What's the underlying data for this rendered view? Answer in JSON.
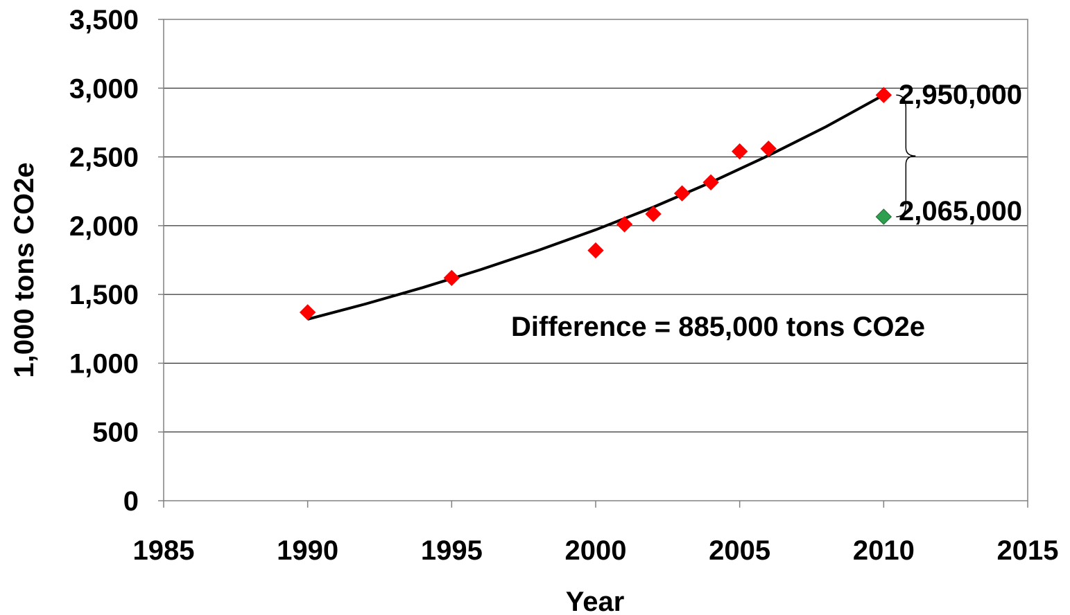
{
  "chart_data": {
    "type": "scatter",
    "xlabel": "Year",
    "ylabel": "1,000 tons CO2e",
    "xlim": [
      1985,
      2015
    ],
    "ylim": [
      0,
      3500
    ],
    "x_ticks": [
      1985,
      1990,
      1995,
      2000,
      2005,
      2010,
      2015
    ],
    "x_tick_labels": [
      "1985",
      "1990",
      "1995",
      "2000",
      "2005",
      "2010",
      "2015"
    ],
    "y_ticks": [
      0,
      500,
      1000,
      1500,
      2000,
      2500,
      3000,
      3500
    ],
    "y_tick_labels": [
      "0",
      "500",
      "1,000",
      "1,500",
      "2,000",
      "2,500",
      "3,000",
      "3,500"
    ],
    "grid": "horizontal",
    "series": [
      {
        "marker": "diamond",
        "color": "#ff0000",
        "x": [
          1990,
          1995,
          2000,
          2001,
          2002,
          2003,
          2004,
          2005,
          2006,
          2010
        ],
        "y": [
          1370,
          1620,
          1820,
          2010,
          2085,
          2235,
          2315,
          2540,
          2560,
          2950
        ]
      },
      {
        "marker": "diamond",
        "color": "#2e9e4f",
        "x": [
          2010
        ],
        "y": [
          2065
        ]
      }
    ],
    "trendline": {
      "kind": "exponential",
      "color": "#000000",
      "x": [
        1990,
        1992,
        1994,
        1996,
        1998,
        2000,
        2002,
        2004,
        2006,
        2008,
        2010
      ],
      "y": [
        1320,
        1430,
        1550,
        1680,
        1820,
        1970,
        2135,
        2315,
        2510,
        2720,
        2950
      ]
    },
    "annotations": {
      "upper_value": "2,950,000",
      "lower_value": "2,065,000",
      "difference": "Difference = 885,000 tons CO2e"
    }
  }
}
